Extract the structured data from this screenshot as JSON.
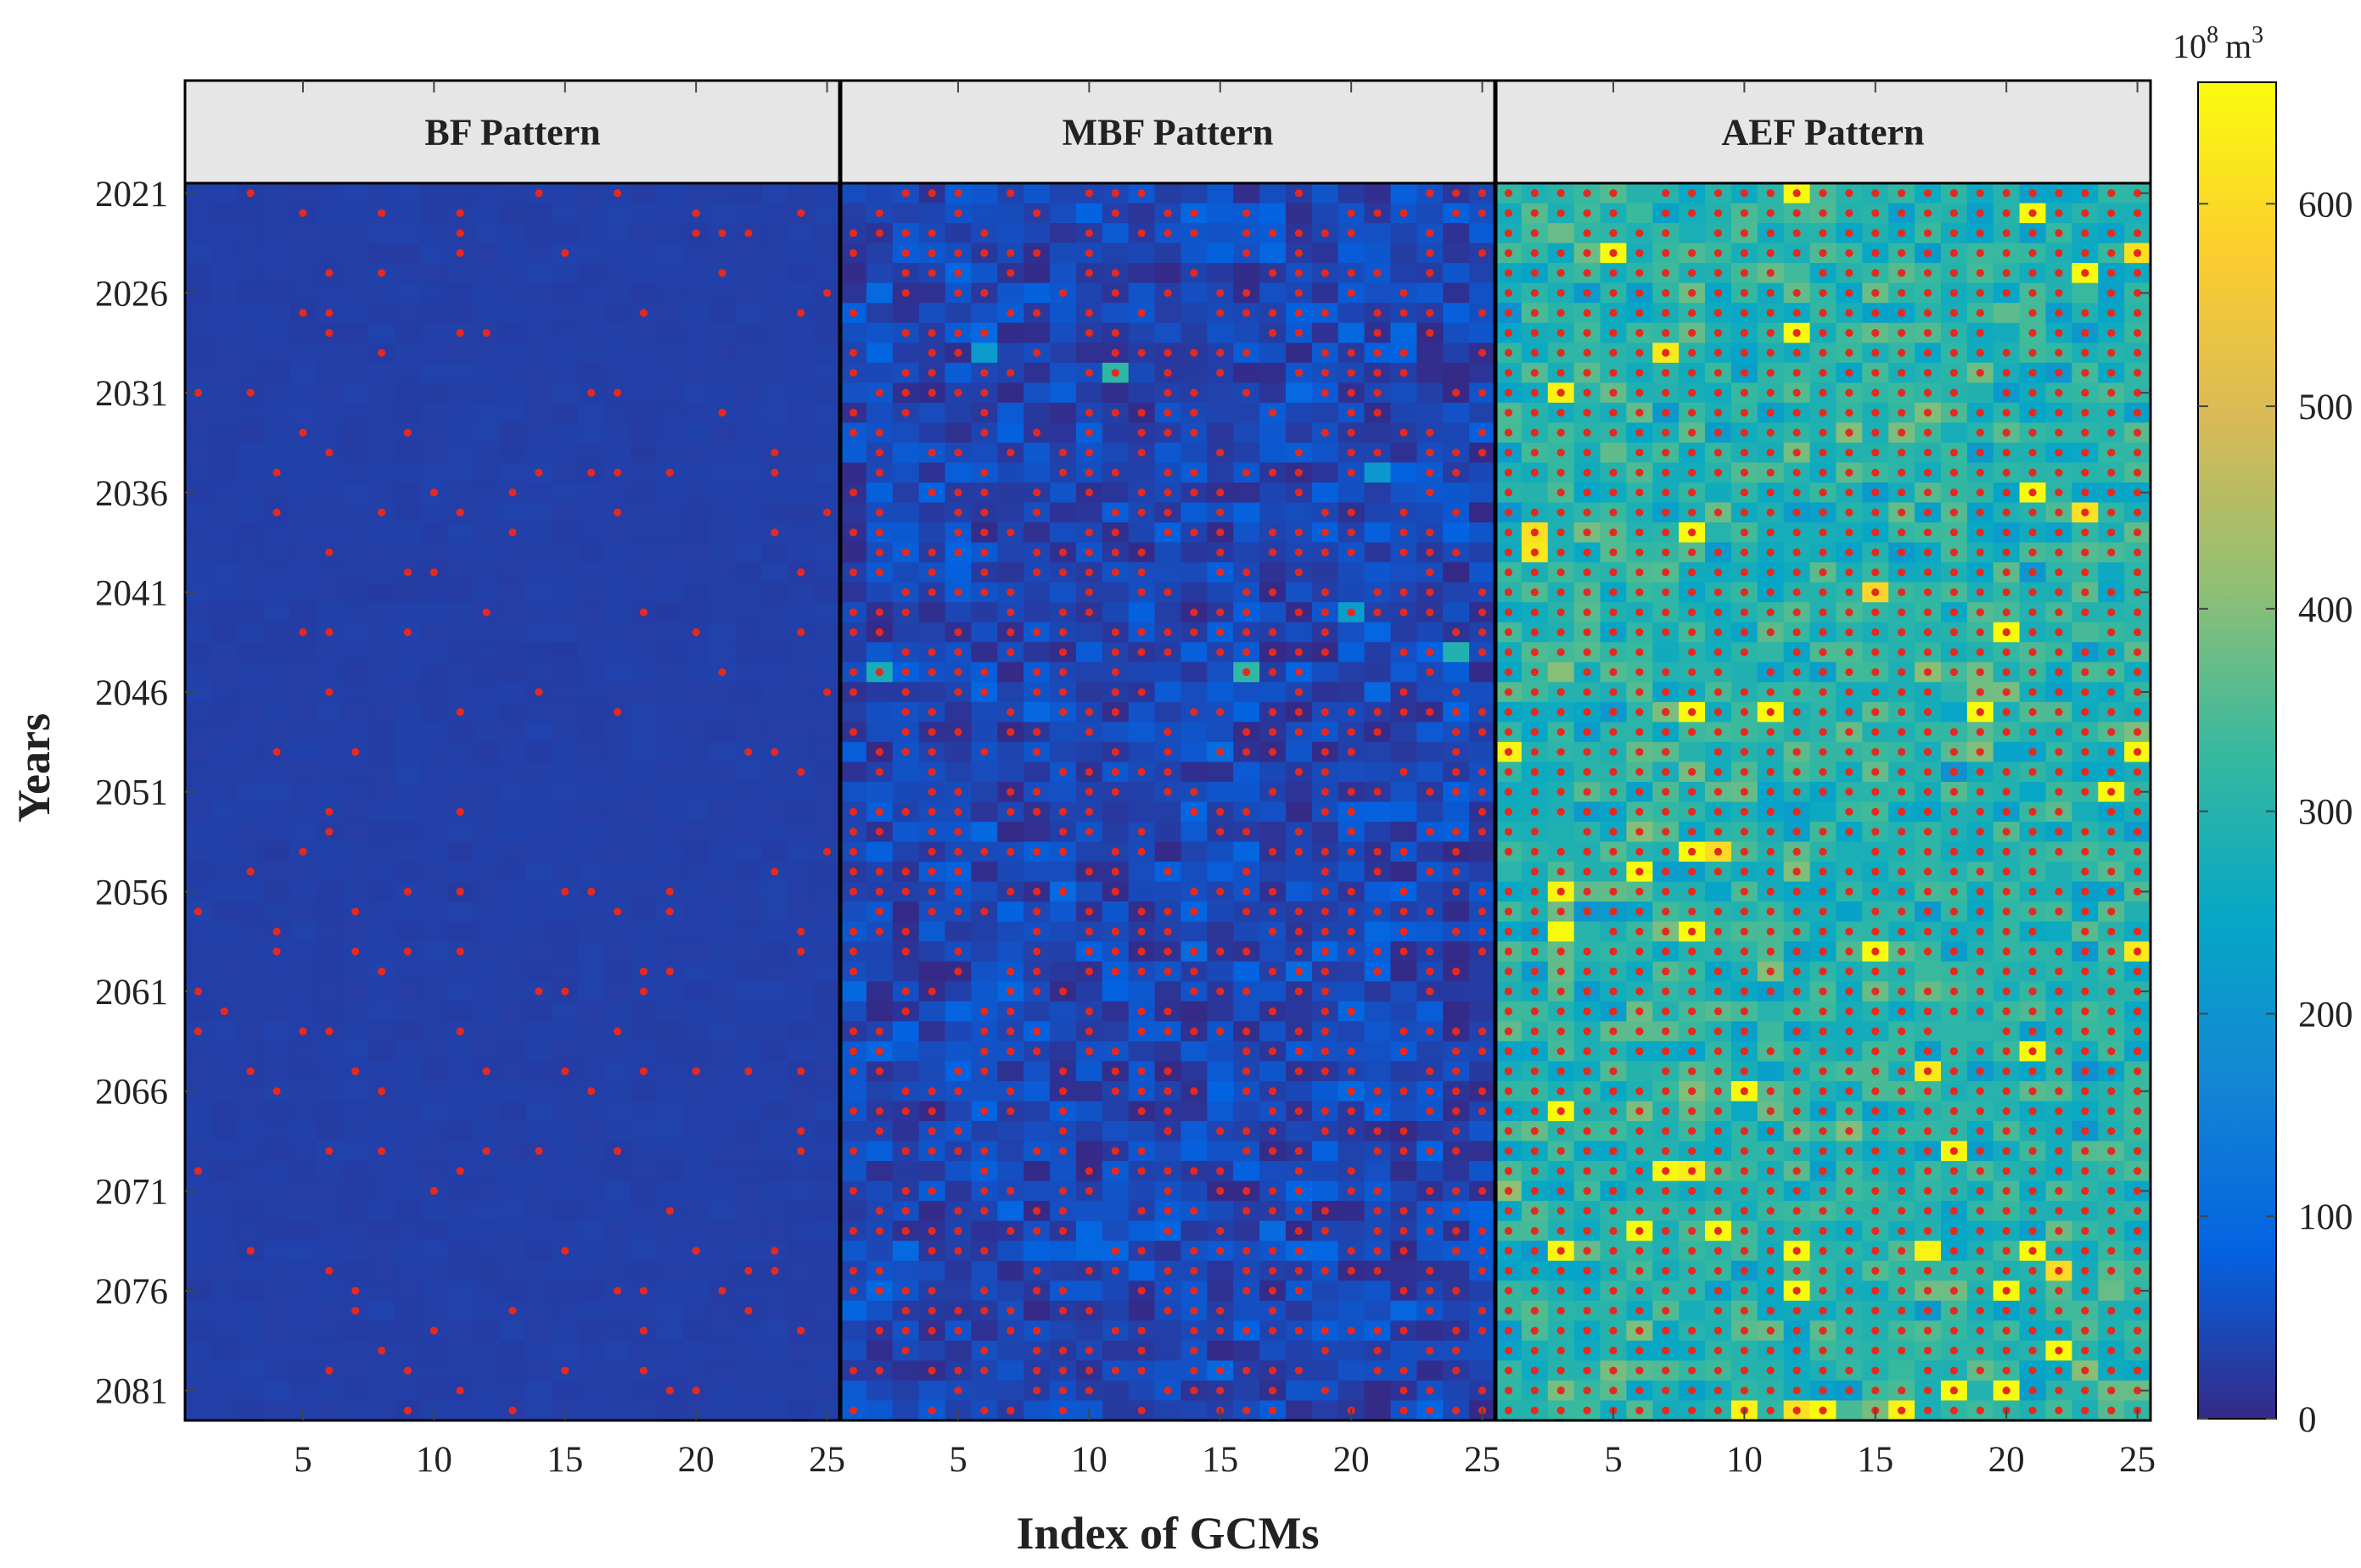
{
  "chart_data": {
    "type": "heatmap",
    "panels": [
      {
        "title": "BF Pattern",
        "mean_value": 30,
        "spread": 6,
        "dot_density": 0.1,
        "bright_cells": 0
      },
      {
        "title": "MBF Pattern",
        "mean_value": 40,
        "spread": 70,
        "dot_density": 0.55,
        "bright_cells": 6
      },
      {
        "title": "AEF Pattern",
        "mean_value": 300,
        "spread": 120,
        "dot_density": 0.97,
        "bright_cells": 40
      }
    ],
    "x": {
      "label": "Index of GCMs",
      "range": [
        1,
        25
      ],
      "ticks": [
        "5",
        "10",
        "15",
        "20",
        "25"
      ]
    },
    "y": {
      "label": "Years",
      "range": [
        2021,
        2082
      ],
      "ticks": [
        "2021",
        "2026",
        "2031",
        "2036",
        "2041",
        "2046",
        "2051",
        "2056",
        "2061",
        "2066",
        "2071",
        "2076",
        "2081"
      ]
    },
    "colorbar": {
      "unit_base": "10",
      "unit_exp": "8",
      "unit_suffix": "m",
      "unit_suffix_exp": "3",
      "range": [
        0,
        660
      ],
      "ticks": [
        "0",
        "100",
        "200",
        "300",
        "400",
        "500",
        "600"
      ]
    },
    "colormap": [
      "#352a87",
      "#0363e1",
      "#1485d4",
      "#06a7c6",
      "#38b99e",
      "#92bf73",
      "#d9ba56",
      "#fcce2e",
      "#f9fb0e"
    ],
    "marker_color": "#e8281c",
    "grid": false
  }
}
